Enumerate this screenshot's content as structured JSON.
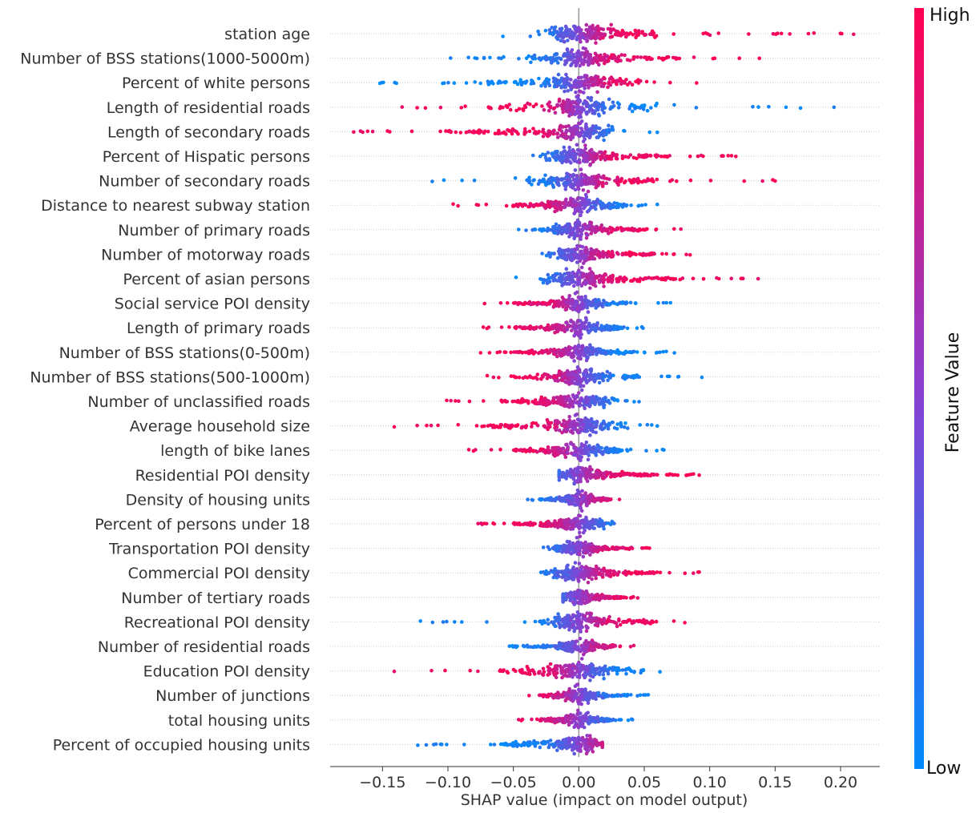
{
  "chart_data": {
    "type": "scatter",
    "subtype": "shap-beeswarm",
    "title": "",
    "xlabel": "SHAP value (impact on model output)",
    "xlim": [
      -0.19,
      0.23
    ],
    "xticks": [
      "−0.15",
      "−0.10",
      "−0.05",
      "0.00",
      "0.05",
      "0.10",
      "0.15",
      "0.20"
    ],
    "xtick_values": [
      -0.15,
      -0.1,
      -0.05,
      0.0,
      0.05,
      0.1,
      0.15,
      0.2
    ],
    "colorbar": {
      "label": "Feature Value",
      "high_label": "High",
      "low_label": "Low",
      "high_color": "#ff0052",
      "low_color": "#008bfb",
      "mid_color": "#8a3fd0"
    },
    "features": [
      {
        "name": "station age",
        "range": [
          -0.058,
          0.21
        ],
        "core": [
          -0.02,
          0.06
        ],
        "high_side": 1
      },
      {
        "name": "Number of BSS stations(1000-5000m)",
        "range": [
          -0.098,
          0.138
        ],
        "core": [
          -0.04,
          0.08
        ],
        "high_side": 1
      },
      {
        "name": "Percent of white persons",
        "range": [
          -0.152,
          0.09
        ],
        "core": [
          -0.07,
          0.05
        ],
        "high_side": 1
      },
      {
        "name": "Length of residential roads",
        "range": [
          -0.135,
          0.195
        ],
        "core": [
          -0.07,
          0.06
        ],
        "high_side": -1
      },
      {
        "name": "Length of secondary roads",
        "range": [
          -0.172,
          0.06
        ],
        "core": [
          -0.1,
          0.03
        ],
        "high_side": -1
      },
      {
        "name": "Percent of Hispatic persons",
        "range": [
          -0.035,
          0.12
        ],
        "core": [
          -0.03,
          0.07
        ],
        "high_side": 1
      },
      {
        "name": "Number of secondary roads",
        "range": [
          -0.112,
          0.15
        ],
        "core": [
          -0.04,
          0.06
        ],
        "high_side": 1
      },
      {
        "name": "Distance to nearest subway station",
        "range": [
          -0.096,
          0.06
        ],
        "core": [
          -0.05,
          0.04
        ],
        "high_side": -1
      },
      {
        "name": "Number of primary roads",
        "range": [
          -0.046,
          0.078
        ],
        "core": [
          -0.03,
          0.05
        ],
        "high_side": 1
      },
      {
        "name": "Number of motorway roads",
        "range": [
          -0.028,
          0.085
        ],
        "core": [
          -0.015,
          0.06
        ],
        "high_side": 1
      },
      {
        "name": "Percent of asian persons",
        "range": [
          -0.048,
          0.137
        ],
        "core": [
          -0.03,
          0.08
        ],
        "high_side": 1
      },
      {
        "name": "Social service POI density",
        "range": [
          -0.072,
          0.07
        ],
        "core": [
          -0.05,
          0.04
        ],
        "high_side": -1
      },
      {
        "name": "Length of primary roads",
        "range": [
          -0.073,
          0.049
        ],
        "core": [
          -0.05,
          0.04
        ],
        "high_side": -1
      },
      {
        "name": "Number of BSS stations(0-500m)",
        "range": [
          -0.075,
          0.073
        ],
        "core": [
          -0.05,
          0.04
        ],
        "high_side": -1
      },
      {
        "name": "Number of BSS stations(500-1000m)",
        "range": [
          -0.07,
          0.094
        ],
        "core": [
          -0.05,
          0.05
        ],
        "high_side": -1
      },
      {
        "name": "Number of unclassified roads",
        "range": [
          -0.101,
          0.046
        ],
        "core": [
          -0.06,
          0.03
        ],
        "high_side": -1
      },
      {
        "name": "Average household size",
        "range": [
          -0.141,
          0.06
        ],
        "core": [
          -0.07,
          0.04
        ],
        "high_side": -1
      },
      {
        "name": "length of bike lanes",
        "range": [
          -0.084,
          0.065
        ],
        "core": [
          -0.05,
          0.04
        ],
        "high_side": -1
      },
      {
        "name": "Residential POI density",
        "range": [
          -0.015,
          0.092
        ],
        "core": [
          -0.01,
          0.06
        ],
        "high_side": 1
      },
      {
        "name": "Density of housing units",
        "range": [
          -0.039,
          0.031
        ],
        "core": [
          -0.03,
          0.025
        ],
        "high_side": 1
      },
      {
        "name": "Percent of persons under 18",
        "range": [
          -0.077,
          0.027
        ],
        "core": [
          -0.05,
          0.02
        ],
        "high_side": -1
      },
      {
        "name": "Transportation POI density",
        "range": [
          -0.027,
          0.054
        ],
        "core": [
          -0.02,
          0.04
        ],
        "high_side": 1
      },
      {
        "name": "Commercial POI density",
        "range": [
          -0.029,
          0.092
        ],
        "core": [
          -0.02,
          0.06
        ],
        "high_side": 1
      },
      {
        "name": "Number of tertiary roads",
        "range": [
          -0.012,
          0.045
        ],
        "core": [
          -0.01,
          0.035
        ],
        "high_side": 1
      },
      {
        "name": "Recreational POI density",
        "range": [
          -0.121,
          0.081
        ],
        "core": [
          -0.03,
          0.06
        ],
        "high_side": 1
      },
      {
        "name": "Number of residential roads",
        "range": [
          -0.053,
          0.042
        ],
        "core": [
          -0.04,
          0.03
        ],
        "high_side": 1
      },
      {
        "name": "Education POI density",
        "range": [
          -0.141,
          0.062
        ],
        "core": [
          -0.06,
          0.05
        ],
        "high_side": -1
      },
      {
        "name": "Number of junctions",
        "range": [
          -0.038,
          0.053
        ],
        "core": [
          -0.03,
          0.04
        ],
        "high_side": -1
      },
      {
        "name": "total housing units",
        "range": [
          -0.046,
          0.041
        ],
        "core": [
          -0.03,
          0.03
        ],
        "high_side": -1
      },
      {
        "name": "Percent of occupied housing units",
        "range": [
          -0.123,
          0.018
        ],
        "core": [
          -0.06,
          0.015
        ],
        "high_side": 1
      }
    ]
  }
}
